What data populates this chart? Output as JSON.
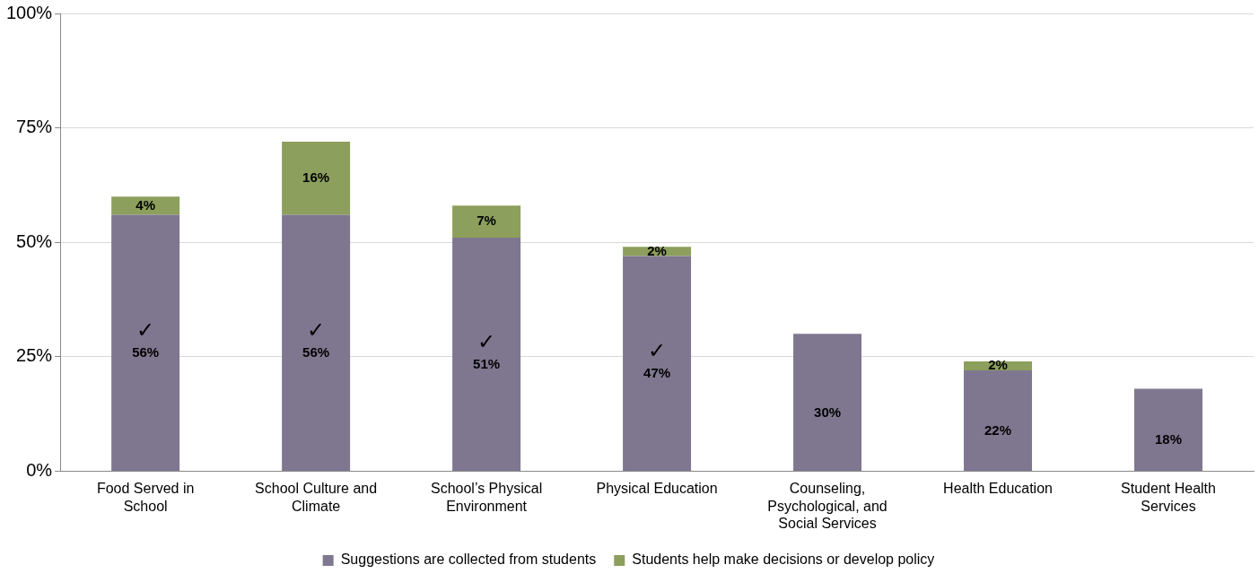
{
  "chart_data": {
    "type": "bar",
    "stacked": true,
    "categories": [
      "Food Served in School",
      "School Culture and Climate",
      "School’s Physical Environment",
      "Physical Education",
      "Counseling, Psychological, and Social Services",
      "Health Education",
      "Student Health Services"
    ],
    "series": [
      {
        "name": "Suggestions are collected from students",
        "color": "#7f778f",
        "values": [
          56,
          56,
          51,
          47,
          30,
          22,
          18
        ],
        "value_labels": [
          "56%",
          "56%",
          "51%",
          "47%",
          "30%",
          "22%",
          "18%"
        ]
      },
      {
        "name": "Students help make decisions or develop policy",
        "color": "#8c9f5c",
        "values": [
          4,
          16,
          7,
          2,
          null,
          2,
          null
        ],
        "value_labels": [
          "4%",
          "16%",
          "7%",
          "2%",
          null,
          "2%",
          null
        ]
      }
    ],
    "ylim": [
      0,
      100
    ],
    "yticks": [
      {
        "value": 0,
        "label": "0%"
      },
      {
        "value": 25,
        "label": "25%"
      },
      {
        "value": 50,
        "label": "50%"
      },
      {
        "value": 75,
        "label": "75%"
      },
      {
        "value": 100,
        "label": "100%"
      }
    ],
    "grid": "y",
    "legend": "bottom",
    "annotations": [
      "✓",
      "✓",
      "✓",
      "✓"
    ]
  }
}
